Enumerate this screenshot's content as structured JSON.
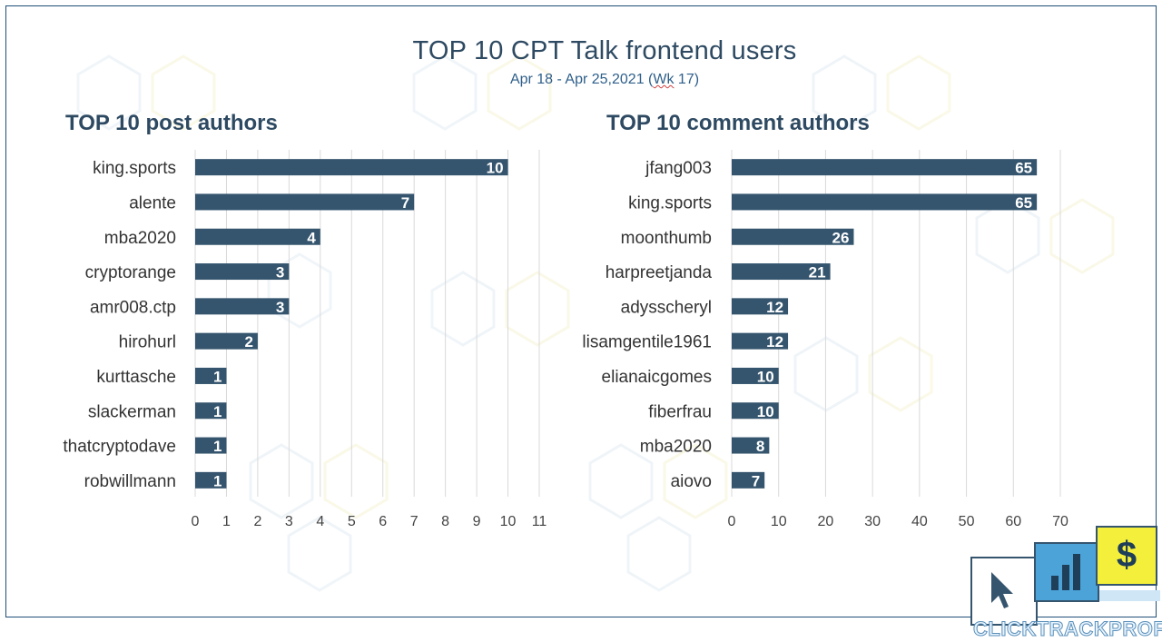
{
  "page": {
    "title": "TOP 10 CPT Talk frontend users",
    "subtitle_main": "Apr 18 - Apr 25,2021 (",
    "subtitle_wk": "Wk",
    "subtitle_end": " 17)",
    "logo_text": "CLICKTRACKPROFIT",
    "logo_icons": [
      "cursor-icon",
      "bar-chart-icon",
      "dollar-icon"
    ],
    "colors": {
      "bar": "#35556e",
      "title": "#2e4a62",
      "grid": "#d9d9d9",
      "frame": "#1f4e79"
    }
  },
  "chart_data": [
    {
      "type": "bar",
      "orientation": "horizontal",
      "title": "TOP 10 post authors",
      "categories": [
        "king.sports",
        "alente",
        "mba2020",
        "cryptorange",
        "amr008.ctp",
        "hirohurl",
        "kurttasche",
        "slackerman",
        "thatcryptodave",
        "robwillmann"
      ],
      "values": [
        10,
        7,
        4,
        3,
        3,
        2,
        1,
        1,
        1,
        1
      ],
      "xlim": [
        0,
        11
      ],
      "xticks": [
        0,
        1,
        2,
        3,
        4,
        5,
        6,
        7,
        8,
        9,
        10,
        11
      ],
      "grid": true,
      "xlabel": "",
      "ylabel": ""
    },
    {
      "type": "bar",
      "orientation": "horizontal",
      "title": "TOP 10 comment authors",
      "categories": [
        "jfang003",
        "king.sports",
        "moonthumb",
        "harpreetjanda",
        "adysscheryl",
        "lisamgentile1961",
        "elianaicgomes",
        "fiberfrau",
        "mba2020",
        "aiovo"
      ],
      "values": [
        65,
        65,
        26,
        21,
        12,
        12,
        10,
        10,
        8,
        7
      ],
      "xlim": [
        0,
        70
      ],
      "xticks": [
        0,
        10,
        20,
        30,
        40,
        50,
        60,
        70
      ],
      "grid": true,
      "xlabel": "",
      "ylabel": ""
    }
  ]
}
